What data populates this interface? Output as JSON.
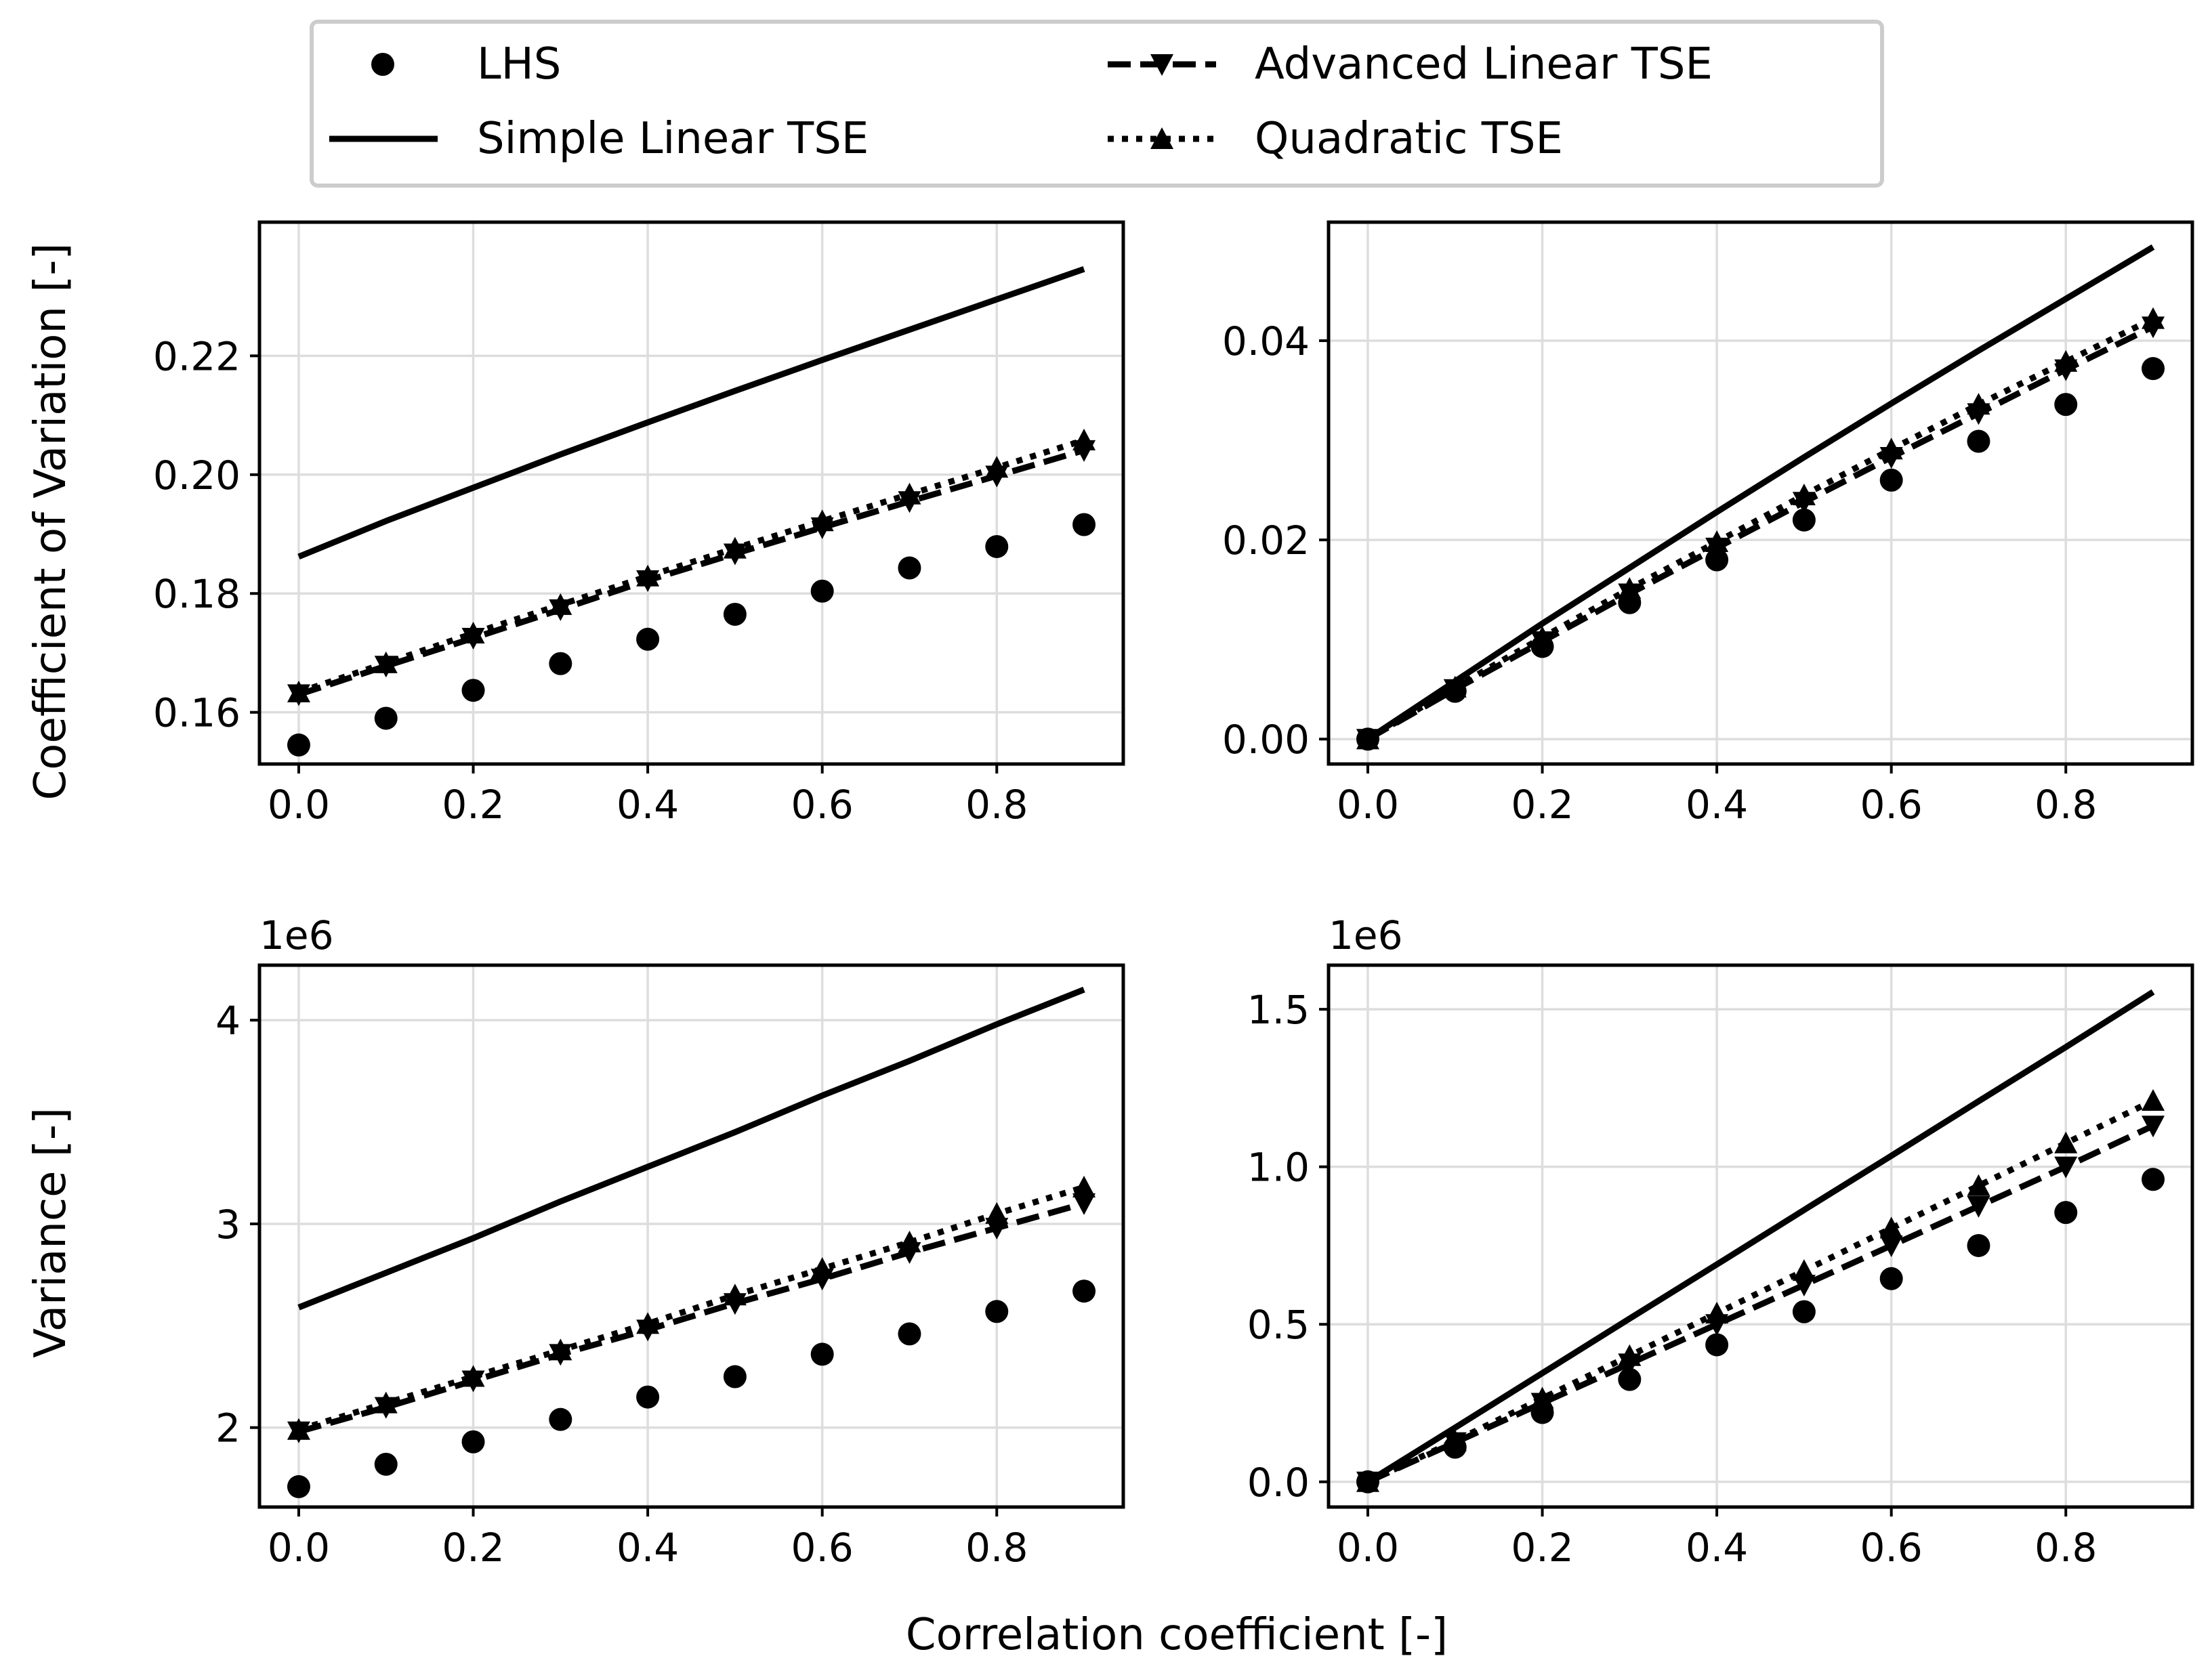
{
  "figure": {
    "xlabel": "Correlation coefficient [-]",
    "ylabel_top": "Coefficient of Variation [-]",
    "ylabel_bottom": "Variance [-]",
    "ink_color": "#000000",
    "grid_color": "#dddddd"
  },
  "legend": {
    "items": [
      {
        "label": "LHS",
        "style": "points",
        "marker": "circle"
      },
      {
        "label": "Advanced Linear TSE",
        "style": "dashed",
        "marker": "triangle-down"
      },
      {
        "label": "Simple Linear TSE",
        "style": "solid",
        "marker": "none"
      },
      {
        "label": "Quadratic TSE",
        "style": "dotted",
        "marker": "triangle-up"
      }
    ]
  },
  "chart_data": [
    {
      "type": "line",
      "panel": "top-left",
      "x": [
        0.0,
        0.1,
        0.2,
        0.3,
        0.4,
        0.5,
        0.6,
        0.7,
        0.8,
        0.9
      ],
      "xlim": [
        -0.045,
        0.945
      ],
      "ylim": [
        0.1513,
        0.2425
      ],
      "xticks": [
        0.0,
        0.2,
        0.4,
        0.6,
        0.8
      ],
      "xtick_labels": [
        "0.0",
        "0.2",
        "0.4",
        "0.6",
        "0.8"
      ],
      "yticks": [
        0.16,
        0.18,
        0.2,
        0.22
      ],
      "ytick_labels": [
        "0.16",
        "0.18",
        "0.20",
        "0.22"
      ],
      "offset_label": "",
      "series": [
        {
          "name": "LHS",
          "values": [
            0.1545,
            0.159,
            0.1637,
            0.1682,
            0.1723,
            0.1765,
            0.1804,
            0.1843,
            0.1879,
            0.1916
          ]
        },
        {
          "name": "Simple Linear TSE",
          "values": [
            0.1862,
            0.1922,
            0.1978,
            0.2034,
            0.2088,
            0.2141,
            0.2193,
            0.2244,
            0.2295,
            0.2346
          ]
        },
        {
          "name": "Advanced Linear TSE",
          "values": [
            0.163,
            0.1678,
            0.1725,
            0.1773,
            0.1822,
            0.1867,
            0.1911,
            0.1955,
            0.1998,
            0.2041
          ]
        },
        {
          "name": "Quadratic TSE",
          "values": [
            0.1634,
            0.1683,
            0.1733,
            0.1781,
            0.1829,
            0.1876,
            0.1922,
            0.1967,
            0.2012,
            0.2058
          ]
        }
      ]
    },
    {
      "type": "line",
      "panel": "top-right",
      "x": [
        0.0,
        0.1,
        0.2,
        0.3,
        0.4,
        0.5,
        0.6,
        0.7,
        0.8,
        0.9
      ],
      "xlim": [
        -0.045,
        0.945
      ],
      "ylim": [
        -0.0025,
        0.0519
      ],
      "xticks": [
        0.0,
        0.2,
        0.4,
        0.6,
        0.8
      ],
      "xtick_labels": [
        "0.0",
        "0.2",
        "0.4",
        "0.6",
        "0.8"
      ],
      "yticks": [
        0.0,
        0.02,
        0.04
      ],
      "ytick_labels": [
        "0.00",
        "0.02",
        "0.04"
      ],
      "offset_label": "",
      "series": [
        {
          "name": "LHS",
          "values": [
            0.0,
            0.0048,
            0.0093,
            0.0137,
            0.018,
            0.022,
            0.026,
            0.0299,
            0.0336,
            0.0372
          ]
        },
        {
          "name": "Simple Linear TSE",
          "values": [
            0.0,
            0.0058,
            0.0116,
            0.0172,
            0.0228,
            0.0283,
            0.0337,
            0.039,
            0.0442,
            0.0494
          ]
        },
        {
          "name": "Advanced Linear TSE",
          "values": [
            0.0,
            0.005,
            0.0098,
            0.0146,
            0.0192,
            0.0238,
            0.0283,
            0.0327,
            0.0371,
            0.0414
          ]
        },
        {
          "name": "Quadratic TSE",
          "values": [
            0.0,
            0.0052,
            0.0102,
            0.0151,
            0.0198,
            0.0245,
            0.0291,
            0.0336,
            0.0379,
            0.0422
          ]
        }
      ]
    },
    {
      "type": "line",
      "panel": "bottom-left",
      "x": [
        0.0,
        0.1,
        0.2,
        0.3,
        0.4,
        0.5,
        0.6,
        0.7,
        0.8,
        0.9
      ],
      "xlim": [
        -0.045,
        0.945
      ],
      "ylim": [
        1.61,
        4.27
      ],
      "xticks": [
        0.0,
        0.2,
        0.4,
        0.6,
        0.8
      ],
      "xtick_labels": [
        "0.0",
        "0.2",
        "0.4",
        "0.6",
        "0.8"
      ],
      "yticks": [
        2,
        3,
        4
      ],
      "ytick_labels": [
        "2",
        "3",
        "4"
      ],
      "offset_label": "1e6",
      "series": [
        {
          "name": "LHS",
          "values": [
            1.71,
            1.82,
            1.93,
            2.04,
            2.15,
            2.25,
            2.36,
            2.46,
            2.57,
            2.67
          ]
        },
        {
          "name": "Simple Linear TSE",
          "values": [
            2.59,
            2.76,
            2.93,
            3.11,
            3.28,
            3.45,
            3.63,
            3.8,
            3.98,
            4.15
          ]
        },
        {
          "name": "Advanced Linear TSE",
          "values": [
            1.98,
            2.1,
            2.23,
            2.36,
            2.48,
            2.61,
            2.73,
            2.86,
            2.98,
            3.1
          ]
        },
        {
          "name": "Quadratic TSE",
          "values": [
            1.99,
            2.12,
            2.25,
            2.38,
            2.51,
            2.65,
            2.78,
            2.91,
            3.05,
            3.18
          ]
        }
      ]
    },
    {
      "type": "line",
      "panel": "bottom-right",
      "x": [
        0.0,
        0.1,
        0.2,
        0.3,
        0.4,
        0.5,
        0.6,
        0.7,
        0.8,
        0.9
      ],
      "xlim": [
        -0.045,
        0.945
      ],
      "ylim": [
        -0.08,
        1.64
      ],
      "xticks": [
        0.0,
        0.2,
        0.4,
        0.6,
        0.8
      ],
      "xtick_labels": [
        "0.0",
        "0.2",
        "0.4",
        "0.6",
        "0.8"
      ],
      "yticks": [
        0.0,
        0.5,
        1.0,
        1.5
      ],
      "ytick_labels": [
        "0.0",
        "0.5",
        "1.0",
        "1.5"
      ],
      "offset_label": "1e6",
      "series": [
        {
          "name": "LHS",
          "values": [
            0.0,
            0.11,
            0.22,
            0.325,
            0.435,
            0.54,
            0.645,
            0.75,
            0.855,
            0.96
          ]
        },
        {
          "name": "Simple Linear TSE",
          "values": [
            0.0,
            0.172,
            0.345,
            0.518,
            0.69,
            0.863,
            1.035,
            1.208,
            1.38,
            1.555
          ]
        },
        {
          "name": "Advanced Linear TSE",
          "values": [
            0.0,
            0.125,
            0.25,
            0.375,
            0.5,
            0.625,
            0.75,
            0.875,
            1.0,
            1.13
          ]
        },
        {
          "name": "Quadratic TSE",
          "values": [
            0.0,
            0.13,
            0.265,
            0.4,
            0.535,
            0.67,
            0.805,
            0.94,
            1.075,
            1.21
          ]
        }
      ]
    }
  ]
}
